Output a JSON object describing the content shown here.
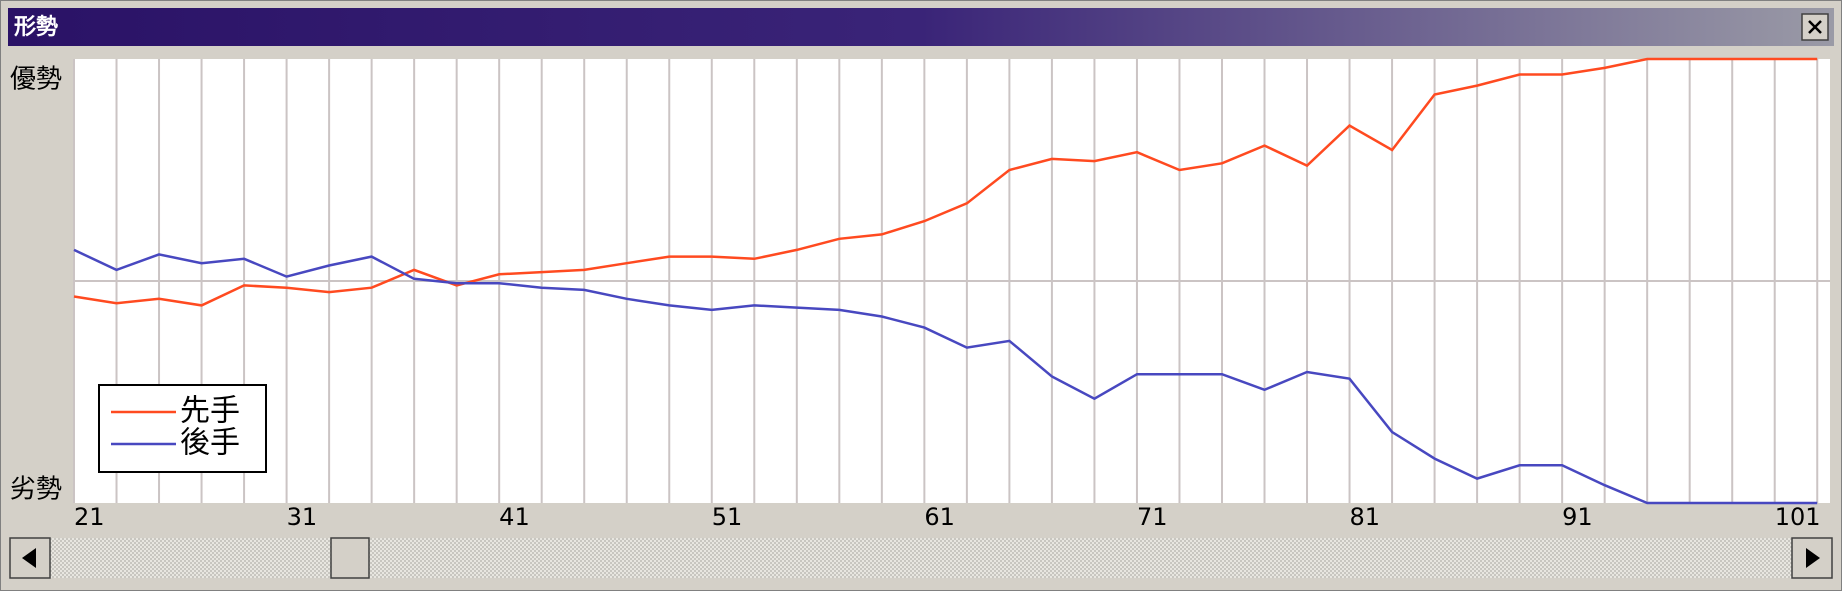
{
  "window": {
    "title": "形勢"
  },
  "chart_data": {
    "type": "line",
    "y_top_label": "優勢",
    "y_bottom_label": "劣勢",
    "x": [
      21,
      23,
      25,
      27,
      29,
      31,
      33,
      35,
      37,
      39,
      41,
      43,
      45,
      47,
      49,
      51,
      53,
      55,
      57,
      59,
      61,
      63,
      65,
      67,
      69,
      71,
      73,
      75,
      77,
      79,
      81,
      83,
      85,
      87,
      89,
      91,
      93,
      95,
      97,
      99,
      101,
      103
    ],
    "series": [
      {
        "name": "先手",
        "color": "#ff4a20",
        "values": [
          -7,
          -10,
          -8,
          -11,
          -2,
          -3,
          -5,
          -3,
          5,
          -2,
          3,
          4,
          5,
          8,
          11,
          11,
          10,
          14,
          19,
          21,
          27,
          35,
          50,
          55,
          54,
          58,
          50,
          53,
          61,
          52,
          70,
          59,
          84,
          88,
          93,
          93,
          96,
          100,
          100,
          100,
          100,
          100
        ]
      },
      {
        "name": "後手",
        "color": "#4848c0",
        "values": [
          14,
          5,
          12,
          8,
          10,
          2,
          7,
          11,
          1,
          -1,
          -1,
          -3,
          -4,
          -8,
          -11,
          -13,
          -11,
          -12,
          -13,
          -16,
          -21,
          -30,
          -27,
          -43,
          -53,
          -42,
          -42,
          -42,
          -49,
          -41,
          -44,
          -68,
          -80,
          -89,
          -83,
          -83,
          -92,
          -100,
          -100,
          -100,
          -100,
          -100
        ]
      }
    ],
    "xlim": [
      21,
      103.6
    ],
    "xticks": [
      21,
      31,
      41,
      51,
      61,
      71,
      81,
      91,
      101
    ],
    "ylim": [
      -100,
      100
    ],
    "grid": true
  }
}
